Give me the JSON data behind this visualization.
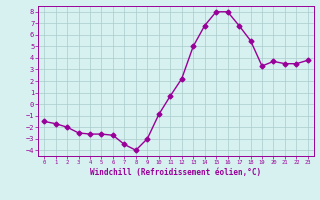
{
  "x": [
    0,
    1,
    2,
    3,
    4,
    5,
    6,
    7,
    8,
    9,
    10,
    11,
    12,
    13,
    14,
    15,
    16,
    17,
    18,
    19,
    20,
    21,
    22,
    23
  ],
  "y": [
    -1.5,
    -1.7,
    -2.0,
    -2.5,
    -2.6,
    -2.6,
    -2.7,
    -3.5,
    -4.0,
    -3.0,
    -0.9,
    0.7,
    2.2,
    5.0,
    6.8,
    8.0,
    8.0,
    6.8,
    5.5,
    3.3,
    3.7,
    3.5,
    3.5,
    3.8
  ],
  "line_color": "#990099",
  "marker": "D",
  "markersize": 2.5,
  "linewidth": 1.0,
  "bg_color": "#d7f0f0",
  "grid_color": "#aacccc",
  "xlabel": "Windchill (Refroidissement éolien,°C)",
  "xlabel_color": "#990099",
  "tick_color": "#990099",
  "yticks": [
    -4,
    -3,
    -2,
    -1,
    0,
    1,
    2,
    3,
    4,
    5,
    6,
    7,
    8
  ],
  "xticks": [
    0,
    1,
    2,
    3,
    4,
    5,
    6,
    7,
    8,
    9,
    10,
    11,
    12,
    13,
    14,
    15,
    16,
    17,
    18,
    19,
    20,
    21,
    22,
    23
  ],
  "ylim": [
    -4.5,
    8.5
  ],
  "xlim": [
    -0.5,
    23.5
  ]
}
